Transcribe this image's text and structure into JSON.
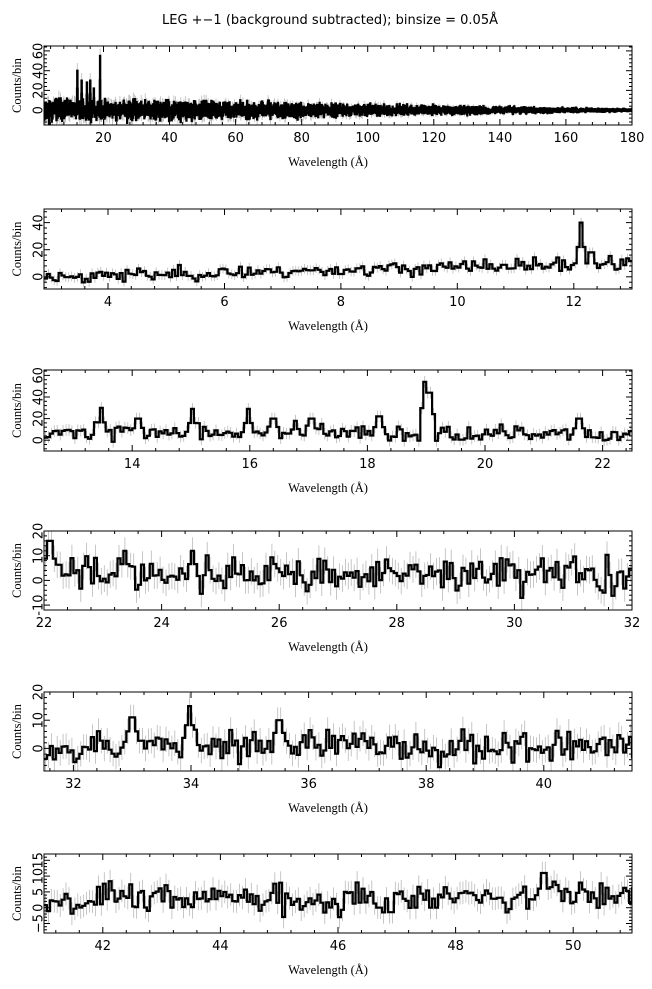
{
  "title": "LEG +−1 (background subtracted); binsize = 0.05Å",
  "chart_data": [
    {
      "type": "line",
      "xlabel": "Wavelength (Å)",
      "ylabel": "Counts/bin",
      "xlim": [
        2,
        180
      ],
      "ylim": [
        -15,
        65
      ],
      "xticks": [
        20,
        40,
        60,
        80,
        100,
        120,
        140,
        160,
        180
      ],
      "yticks": [
        0,
        20,
        40,
        60
      ],
      "seed": 11,
      "noise_start": 9,
      "noise_end": 1,
      "noise_end_x": 178,
      "peaks": [
        [
          12.1,
          40
        ],
        [
          13.4,
          30
        ],
        [
          15.0,
          28
        ],
        [
          16.0,
          30
        ],
        [
          17.1,
          22
        ],
        [
          18.97,
          55
        ]
      ]
    },
    {
      "type": "line",
      "xlabel": "Wavelength (Å)",
      "ylabel": "Counts/bin",
      "xlim": [
        2.9,
        13
      ],
      "ylim": [
        -9,
        50
      ],
      "xticks": [
        4,
        6,
        8,
        10,
        12
      ],
      "yticks": [
        0,
        20,
        40
      ],
      "seed": 23,
      "trend": [
        [
          2.9,
          0
        ],
        [
          13,
          10
        ]
      ],
      "noise": 4,
      "peaks": [
        [
          12.12,
          40
        ],
        [
          12.3,
          18
        ]
      ]
    },
    {
      "type": "line",
      "xlabel": "Wavelength (Å)",
      "ylabel": "Counts/bin",
      "xlim": [
        12.5,
        22.5
      ],
      "ylim": [
        -10,
        65
      ],
      "xticks": [
        14,
        16,
        18,
        20,
        22
      ],
      "yticks": [
        0,
        20,
        40,
        60
      ],
      "seed": 37,
      "trend": [
        [
          12.5,
          8
        ],
        [
          22.5,
          4
        ]
      ],
      "noise": 6,
      "peaks": [
        [
          13.47,
          30
        ],
        [
          14.1,
          20
        ],
        [
          15.02,
          29
        ],
        [
          15.97,
          29
        ],
        [
          16.4,
          20
        ],
        [
          16.78,
          18
        ],
        [
          17.05,
          20
        ],
        [
          18.2,
          22
        ],
        [
          18.97,
          54
        ],
        [
          19.05,
          44
        ],
        [
          21.6,
          20
        ]
      ]
    },
    {
      "type": "line",
      "xlabel": "Wavelength (Å)",
      "ylabel": "Counts/bin",
      "xlim": [
        22,
        32
      ],
      "ylim": [
        -12,
        20
      ],
      "xticks": [
        22,
        24,
        26,
        28,
        30,
        32
      ],
      "yticks": [
        -10,
        0,
        10,
        20
      ],
      "seed": 41,
      "trend": [
        [
          22,
          3
        ],
        [
          32,
          2
        ]
      ],
      "noise": 6,
      "peaks": [
        [
          22.1,
          16
        ],
        [
          23.38,
          12
        ],
        [
          24.52,
          12
        ]
      ]
    },
    {
      "type": "line",
      "xlabel": "Wavelength (Å)",
      "ylabel": "Counts/bin",
      "xlim": [
        31.5,
        41.5
      ],
      "ylim": [
        -8,
        20
      ],
      "xticks": [
        32,
        34,
        36,
        38,
        40
      ],
      "yticks": [
        0,
        10,
        20
      ],
      "seed": 53,
      "trend": [
        [
          31.5,
          1
        ],
        [
          41.5,
          1
        ]
      ],
      "noise": 5,
      "peaks": [
        [
          33.96,
          15
        ],
        [
          33.0,
          11
        ],
        [
          35.5,
          10
        ]
      ]
    },
    {
      "type": "line",
      "xlabel": "Wavelength (Å)",
      "ylabel": "Counts/bin",
      "xlim": [
        41,
        51
      ],
      "ylim": [
        -8,
        17
      ],
      "xticks": [
        42,
        44,
        46,
        48,
        50
      ],
      "yticks": [
        -5,
        0,
        5,
        10,
        15
      ],
      "yticklabels": [
        "−5",
        "0",
        "5",
        "10",
        "15"
      ],
      "seed": 67,
      "trend": [
        [
          41,
          3
        ],
        [
          51,
          3
        ]
      ],
      "noise": 4,
      "peaks": [
        [
          49.5,
          11
        ]
      ]
    }
  ]
}
